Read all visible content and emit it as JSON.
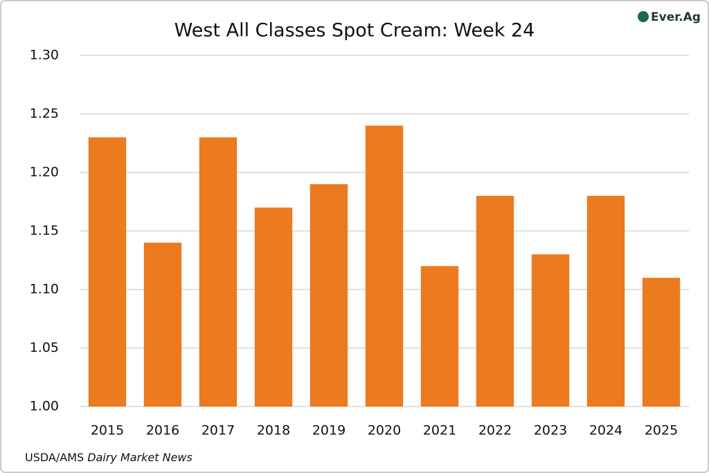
{
  "chart_data": {
    "type": "bar",
    "title": "West All Classes Spot Cream: Week 24",
    "categories": [
      "2015",
      "2016",
      "2017",
      "2018",
      "2019",
      "2020",
      "2021",
      "2022",
      "2023",
      "2024",
      "2025"
    ],
    "values": [
      1.23,
      1.14,
      1.23,
      1.17,
      1.19,
      1.24,
      1.12,
      1.18,
      1.13,
      1.18,
      1.11
    ],
    "color": "#ec7a1f",
    "ylim": [
      1.0,
      1.3
    ],
    "yticks": [
      {
        "value": 1.0,
        "label": "1.00"
      },
      1.05,
      {
        "value": 1.1,
        "label": "1.10"
      },
      1.15,
      {
        "value": 1.2,
        "label": "1.20"
      },
      1.25,
      {
        "value": 1.3,
        "label": "1.30"
      }
    ],
    "grid": true,
    "source": [
      "USDA/AMS",
      "Dairy Market News"
    ],
    "logo": "Ever.Ag"
  }
}
